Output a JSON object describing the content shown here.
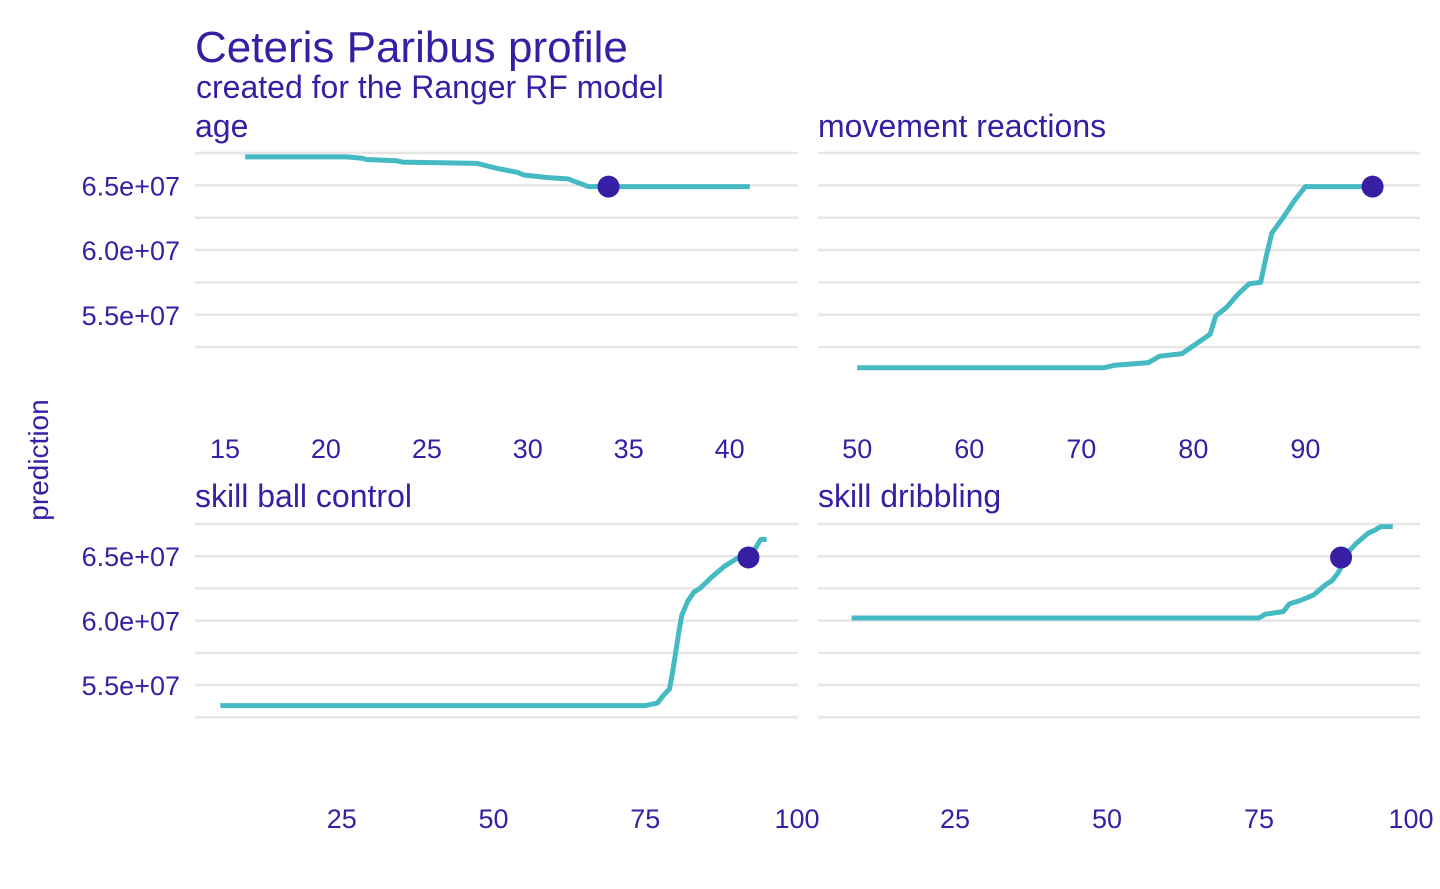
{
  "title": "Ceteris Paribus profile",
  "subtitle": "created for the Ranger RF model",
  "ylabel": "prediction",
  "colors": {
    "line": "#46bac2",
    "point": "#371ea3",
    "text": "#371ea3",
    "grid": "#e6e6e6"
  },
  "chart_data": [
    {
      "type": "line",
      "panel": "age",
      "x": [
        16,
        21,
        21.8,
        22,
        23.5,
        23.8,
        27.5,
        28,
        28.5,
        29.5,
        29.8,
        31,
        32,
        33,
        41
      ],
      "y": [
        67200000.0,
        67200000.0,
        67100000.0,
        67000000.0,
        66900000.0,
        66800000.0,
        66700000.0,
        66500000.0,
        66300000.0,
        66000000.0,
        65800000.0,
        65600000.0,
        65500000.0,
        64900000.0,
        64900000.0
      ],
      "point": {
        "x": 34,
        "y": 64900000.0
      },
      "xticks": [
        "15",
        "20",
        "25",
        "30",
        "35",
        "40"
      ],
      "xtick_values": [
        15,
        20,
        25,
        30,
        35,
        40
      ],
      "xlim": [
        15,
        42
      ],
      "yticks": [
        "6.5e+07",
        "6.0e+07",
        "5.5e+07"
      ],
      "ytick_values": [
        65000000.0,
        60000000.0,
        55000000.0
      ],
      "ylim": [
        50500000.0,
        67500000.0
      ]
    },
    {
      "type": "line",
      "panel": "movement  reactions",
      "x": [
        50,
        72,
        73,
        76,
        77,
        79,
        80,
        81.5,
        82,
        83,
        84,
        85,
        86,
        86.5,
        87,
        88,
        89,
        90,
        96
      ],
      "y": [
        50900000.0,
        50900000.0,
        51100000.0,
        51300000.0,
        51800000.0,
        52000000.0,
        52600000.0,
        53500000.0,
        54900000.0,
        55600000.0,
        56600000.0,
        57400000.0,
        57500000.0,
        59500000.0,
        61300000.0,
        62500000.0,
        63800000.0,
        64900000.0,
        64900000.0
      ],
      "point": {
        "x": 96,
        "y": 64900000.0
      },
      "xticks": [
        "50",
        "60",
        "70",
        "80",
        "90"
      ],
      "xtick_values": [
        50,
        60,
        70,
        80,
        90
      ],
      "xlim": [
        49,
        98
      ],
      "yticks": [
        "6.5e+07",
        "6.0e+07",
        "5.5e+07"
      ],
      "ytick_values": [
        65000000.0,
        60000000.0,
        55000000.0
      ],
      "ylim": [
        50500000.0,
        67500000.0
      ]
    },
    {
      "type": "line",
      "panel": "skill  ball  control",
      "x": [
        5,
        75,
        77,
        78,
        79,
        79.5,
        80,
        80.5,
        81,
        82,
        83,
        84,
        86,
        87,
        88,
        90,
        92,
        93,
        94,
        95
      ],
      "y": [
        53400000.0,
        53400000.0,
        53600000.0,
        54200000.0,
        54700000.0,
        56000000.0,
        57500000.0,
        59000000.0,
        60400000.0,
        61500000.0,
        62200000.0,
        62500000.0,
        63400000.0,
        63800000.0,
        64200000.0,
        64800000.0,
        65200000.0,
        65500000.0,
        66300000.0,
        66300000.0
      ],
      "point": {
        "x": 92,
        "y": 64900000.0
      },
      "xticks": [
        "25",
        "50",
        "75",
        "100"
      ],
      "xtick_values": [
        25,
        50,
        75,
        100
      ],
      "xlim": [
        0,
        100
      ],
      "yticks": [
        "6.5e+07",
        "6.0e+07",
        "5.5e+07"
      ],
      "ytick_values": [
        65000000.0,
        60000000.0,
        55000000.0
      ],
      "ylim": [
        50500000.0,
        67500000.0
      ]
    },
    {
      "type": "line",
      "panel": "skill  dribbling",
      "x": [
        8,
        75,
        76,
        79,
        80,
        82,
        84,
        85,
        86,
        87,
        88,
        89,
        90,
        91,
        92,
        93,
        94,
        95,
        97
      ],
      "y": [
        60200000.0,
        60200000.0,
        60500000.0,
        60700000.0,
        61300000.0,
        61600000.0,
        62000000.0,
        62400000.0,
        62800000.0,
        63100000.0,
        63700000.0,
        64600000.0,
        65500000.0,
        66000000.0,
        66400000.0,
        66800000.0,
        67000000.0,
        67300000.0,
        67300000.0
      ],
      "point": {
        "x": 88.5,
        "y": 64900000.0
      },
      "xticks": [
        "25",
        "50",
        "75",
        "100"
      ],
      "xtick_values": [
        25,
        50,
        75,
        100
      ],
      "xlim": [
        0,
        100
      ],
      "yticks": [
        "6.5e+07",
        "6.0e+07",
        "5.5e+07"
      ],
      "ytick_values": [
        65000000.0,
        60000000.0,
        55000000.0
      ],
      "ylim": [
        50500000.0,
        67500000.0
      ]
    }
  ]
}
